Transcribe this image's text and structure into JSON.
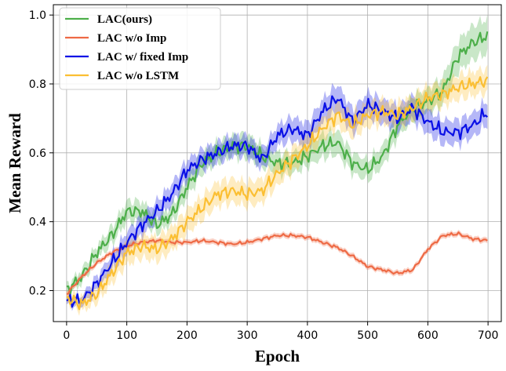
{
  "chart_data": {
    "type": "line",
    "title": "",
    "xlabel": "Epoch",
    "ylabel": "Mean Reward",
    "xlim": [
      -22,
      722
    ],
    "ylim": [
      0.11,
      1.03
    ],
    "xticks": [
      0,
      100,
      200,
      300,
      400,
      500,
      600,
      700
    ],
    "xtick_labels": [
      "0",
      "100",
      "200",
      "300",
      "400",
      "500",
      "600",
      "700"
    ],
    "yticks": [
      0.2,
      0.4,
      0.6,
      0.8,
      1.0
    ],
    "ytick_labels": [
      "0.2",
      "0.4",
      "0.6",
      "0.8",
      "1.0"
    ],
    "grid": true,
    "legend_position": "top-left",
    "x": [
      0,
      25,
      50,
      75,
      100,
      125,
      150,
      175,
      200,
      225,
      250,
      275,
      300,
      325,
      350,
      375,
      400,
      425,
      450,
      475,
      500,
      525,
      550,
      575,
      600,
      625,
      650,
      675,
      700
    ],
    "series": [
      {
        "name": "LAC(ours)",
        "color": "#4daf4a",
        "values": [
          0.2,
          0.24,
          0.31,
          0.36,
          0.43,
          0.43,
          0.39,
          0.42,
          0.5,
          0.57,
          0.6,
          0.62,
          0.62,
          0.59,
          0.57,
          0.57,
          0.59,
          0.62,
          0.63,
          0.57,
          0.55,
          0.59,
          0.68,
          0.73,
          0.75,
          0.78,
          0.88,
          0.92,
          0.94
        ],
        "band": [
          0.015,
          0.02,
          0.02,
          0.025,
          0.03,
          0.03,
          0.025,
          0.025,
          0.03,
          0.03,
          0.03,
          0.03,
          0.035,
          0.03,
          0.03,
          0.03,
          0.03,
          0.035,
          0.035,
          0.03,
          0.03,
          0.03,
          0.035,
          0.035,
          0.035,
          0.04,
          0.045,
          0.05,
          0.05
        ]
      },
      {
        "name": "LAC w/o Imp",
        "color": "#ee6a45",
        "values": [
          0.19,
          0.24,
          0.28,
          0.31,
          0.33,
          0.34,
          0.345,
          0.34,
          0.34,
          0.345,
          0.34,
          0.335,
          0.34,
          0.35,
          0.36,
          0.36,
          0.355,
          0.34,
          0.325,
          0.3,
          0.27,
          0.26,
          0.25,
          0.26,
          0.32,
          0.36,
          0.365,
          0.35,
          0.345
        ],
        "band": [
          0.008,
          0.008,
          0.008,
          0.008,
          0.008,
          0.008,
          0.008,
          0.008,
          0.008,
          0.008,
          0.008,
          0.008,
          0.008,
          0.008,
          0.008,
          0.008,
          0.008,
          0.008,
          0.008,
          0.008,
          0.008,
          0.008,
          0.008,
          0.008,
          0.008,
          0.008,
          0.008,
          0.008,
          0.008
        ]
      },
      {
        "name": "LAC w/ fixed Imp",
        "color": "#0a10e6",
        "values": [
          0.17,
          0.17,
          0.22,
          0.28,
          0.34,
          0.39,
          0.43,
          0.48,
          0.55,
          0.58,
          0.6,
          0.62,
          0.62,
          0.58,
          0.65,
          0.67,
          0.65,
          0.72,
          0.76,
          0.69,
          0.74,
          0.72,
          0.7,
          0.73,
          0.69,
          0.66,
          0.66,
          0.68,
          0.72
        ],
        "band": [
          0.01,
          0.015,
          0.02,
          0.025,
          0.03,
          0.03,
          0.03,
          0.03,
          0.03,
          0.03,
          0.03,
          0.03,
          0.03,
          0.03,
          0.03,
          0.035,
          0.035,
          0.035,
          0.04,
          0.035,
          0.035,
          0.035,
          0.035,
          0.035,
          0.035,
          0.035,
          0.035,
          0.035,
          0.035
        ]
      },
      {
        "name": "LAC w/o LSTM",
        "color": "#fbbf33",
        "values": [
          0.18,
          0.16,
          0.19,
          0.25,
          0.31,
          0.33,
          0.32,
          0.35,
          0.4,
          0.44,
          0.48,
          0.49,
          0.48,
          0.49,
          0.54,
          0.58,
          0.62,
          0.67,
          0.71,
          0.68,
          0.71,
          0.72,
          0.71,
          0.73,
          0.76,
          0.77,
          0.79,
          0.8,
          0.81
        ],
        "band": [
          0.015,
          0.02,
          0.025,
          0.03,
          0.035,
          0.035,
          0.035,
          0.035,
          0.035,
          0.035,
          0.035,
          0.035,
          0.035,
          0.035,
          0.035,
          0.035,
          0.035,
          0.035,
          0.035,
          0.035,
          0.035,
          0.035,
          0.035,
          0.035,
          0.035,
          0.035,
          0.035,
          0.035,
          0.035
        ]
      }
    ]
  }
}
